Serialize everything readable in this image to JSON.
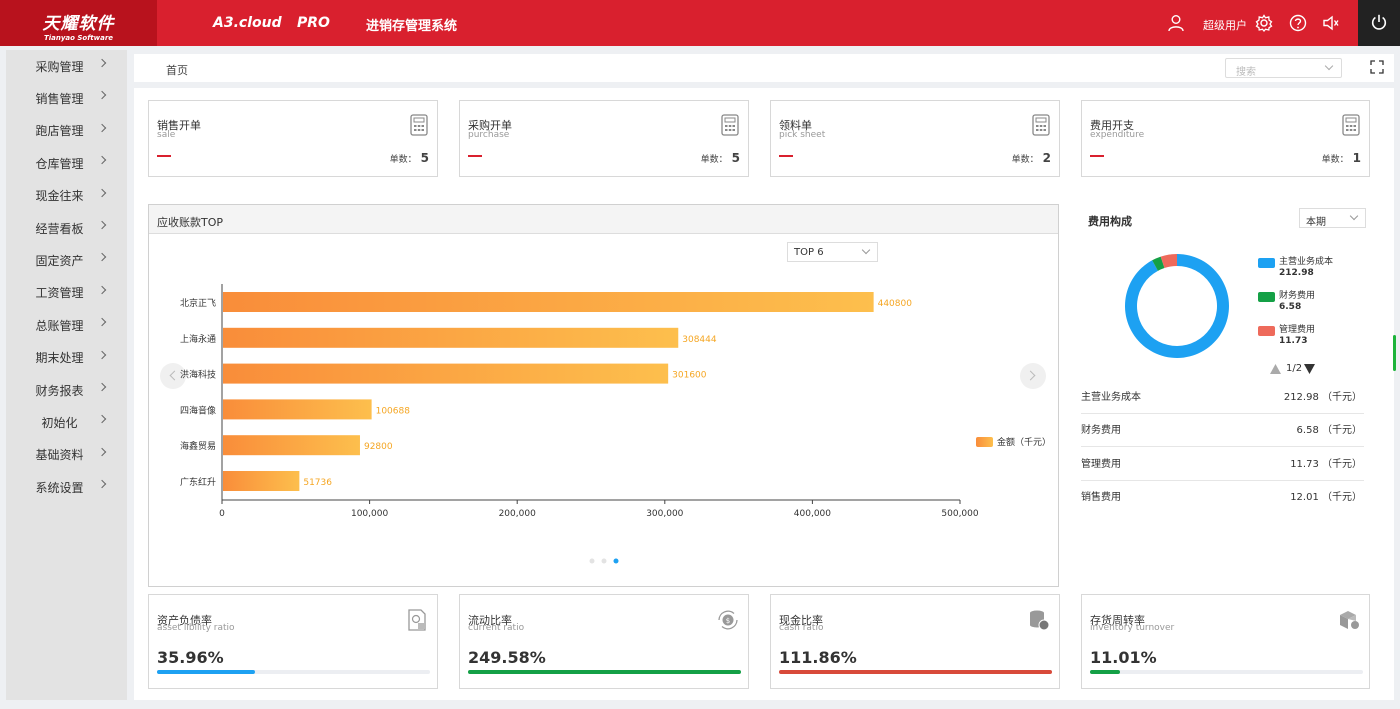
{
  "header": {
    "logo_cn": "天耀软件",
    "logo_en": "Tianyao Software",
    "product": "A3.cloud",
    "edition": "PRO",
    "system_name": "进销存管理系统",
    "user_name": "超级用户",
    "icons": [
      "user-icon",
      "gear-icon",
      "help-icon",
      "speaker-icon",
      "power-icon"
    ]
  },
  "sidebar": {
    "items": [
      {
        "label": "采购管理"
      },
      {
        "label": "销售管理"
      },
      {
        "label": "跑店管理"
      },
      {
        "label": "仓库管理"
      },
      {
        "label": "现金往来"
      },
      {
        "label": "经营看板"
      },
      {
        "label": "固定资产"
      },
      {
        "label": "工资管理"
      },
      {
        "label": "总账管理"
      },
      {
        "label": "期末处理"
      },
      {
        "label": "财务报表"
      },
      {
        "label": "初始化"
      },
      {
        "label": "基础资料"
      },
      {
        "label": "系统设置"
      }
    ]
  },
  "topbar": {
    "breadcrumb": "首页",
    "search_placeholder": "搜索"
  },
  "cards": [
    {
      "title": "销售开单",
      "subtitle": "sale",
      "count_label": "单数：",
      "count": "5"
    },
    {
      "title": "采购开单",
      "subtitle": "purchase",
      "count_label": "单数：",
      "count": "5"
    },
    {
      "title": "领料单",
      "subtitle": "pick sheet",
      "count_label": "单数：",
      "count": "2"
    },
    {
      "title": "费用开支",
      "subtitle": "expenditure",
      "count_label": "单数：",
      "count": "1"
    }
  ],
  "receivables": {
    "title": "应收账款TOP",
    "top_select": "TOP 6",
    "legend": "金额（千元）",
    "colors": {
      "bar_start": "#f98d3a",
      "bar_end": "#fdbf4d",
      "label": "#f5a623"
    },
    "pager_dots": 3,
    "pager_active": 3
  },
  "chart_data": {
    "type": "bar",
    "orientation": "horizontal",
    "categories": [
      "北京正飞",
      "上海永通",
      "洪海科技",
      "四海音像",
      "海鑫贸易",
      "广东红升"
    ],
    "series": [
      {
        "name": "金额（千元）",
        "values": [
          440800,
          308444,
          301600,
          100688,
          92800,
          51736
        ]
      }
    ],
    "value_labels": [
      "440800",
      "308444",
      "301600",
      "100688",
      "92800",
      "51736"
    ],
    "xlim": [
      0,
      500000
    ],
    "xticks": [
      "0",
      "100,000",
      "200,000",
      "300,000",
      "400,000",
      "500,000"
    ],
    "legend_position": "right"
  },
  "fee_composition": {
    "title": "费用构成",
    "period": "本期",
    "legend": [
      {
        "name": "主营业务成本",
        "value": "212.98",
        "color": "#1da1f2"
      },
      {
        "name": "财务费用",
        "value": "6.58",
        "color": "#14a046"
      },
      {
        "name": "管理费用",
        "value": "11.73",
        "color": "#ee6a5b"
      }
    ],
    "donut_values": [
      212.98,
      6.58,
      11.73
    ],
    "pager": "1/2",
    "rows": [
      {
        "name": "主营业务成本",
        "value": "212.98 （千元）"
      },
      {
        "name": "财务费用",
        "value": "6.58 （千元）"
      },
      {
        "name": "管理费用",
        "value": "11.73 （千元）"
      },
      {
        "name": "销售费用",
        "value": "12.01 （千元）"
      }
    ]
  },
  "ratios": [
    {
      "title": "资产负债率",
      "subtitle": "asset libility ratio",
      "value": "35.96%",
      "fill": 0.36,
      "color": "#1da1f2",
      "icon": "document-stamp-icon"
    },
    {
      "title": "流动比率",
      "subtitle": "current ratio",
      "value": "249.58%",
      "fill": 1.0,
      "color": "#14a046",
      "icon": "currency-cycle-icon"
    },
    {
      "title": "现金比率",
      "subtitle": "cash ratio",
      "value": "111.86%",
      "fill": 1.0,
      "color": "#d84a3a",
      "icon": "coin-stack-icon"
    },
    {
      "title": "存货周转率",
      "subtitle": "inventory turnover",
      "value": "11.01%",
      "fill": 0.11,
      "color": "#14a046",
      "icon": "box-icon"
    }
  ]
}
